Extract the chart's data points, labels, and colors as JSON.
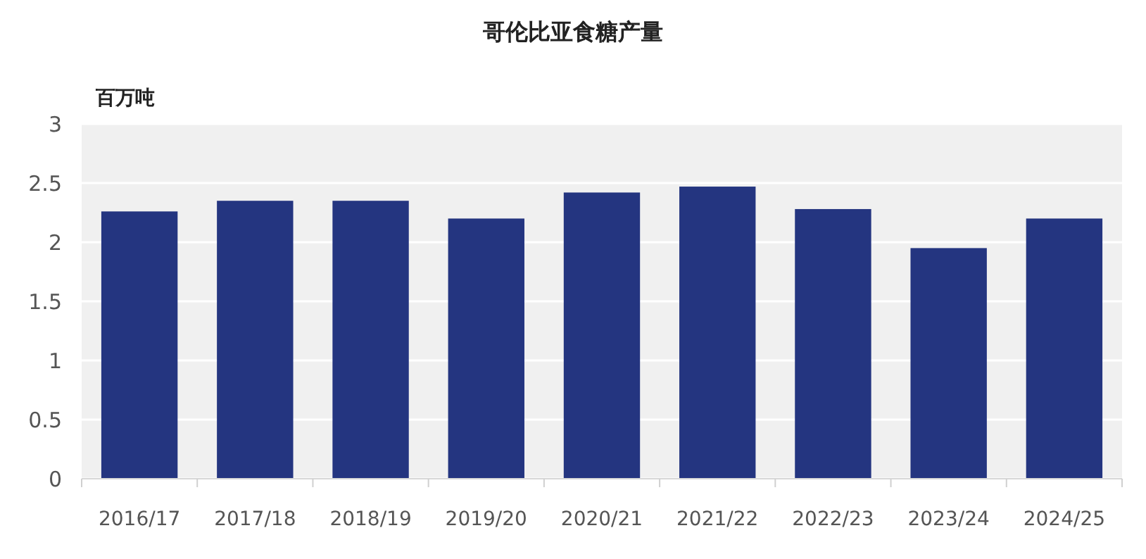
{
  "chart_data": {
    "type": "bar",
    "title": "哥伦比亚食糖产量",
    "ylabel": "百万吨",
    "categories": [
      "2016/17",
      "2017/18",
      "2018/19",
      "2019/20",
      "2020/21",
      "2021/22",
      "2022/23",
      "2023/24",
      "2024/25"
    ],
    "values": [
      2.26,
      2.35,
      2.35,
      2.2,
      2.42,
      2.47,
      2.28,
      1.95,
      2.2
    ],
    "color": "#243580",
    "ylim": [
      0,
      3
    ],
    "yticks": [
      0,
      {
        "value": 0.5,
        "label": "0.5"
      },
      1,
      {
        "value": 1.5,
        "label": "1.5"
      },
      2,
      {
        "value": 2.5,
        "label": "2.5"
      },
      3
    ],
    "grid": "y"
  }
}
